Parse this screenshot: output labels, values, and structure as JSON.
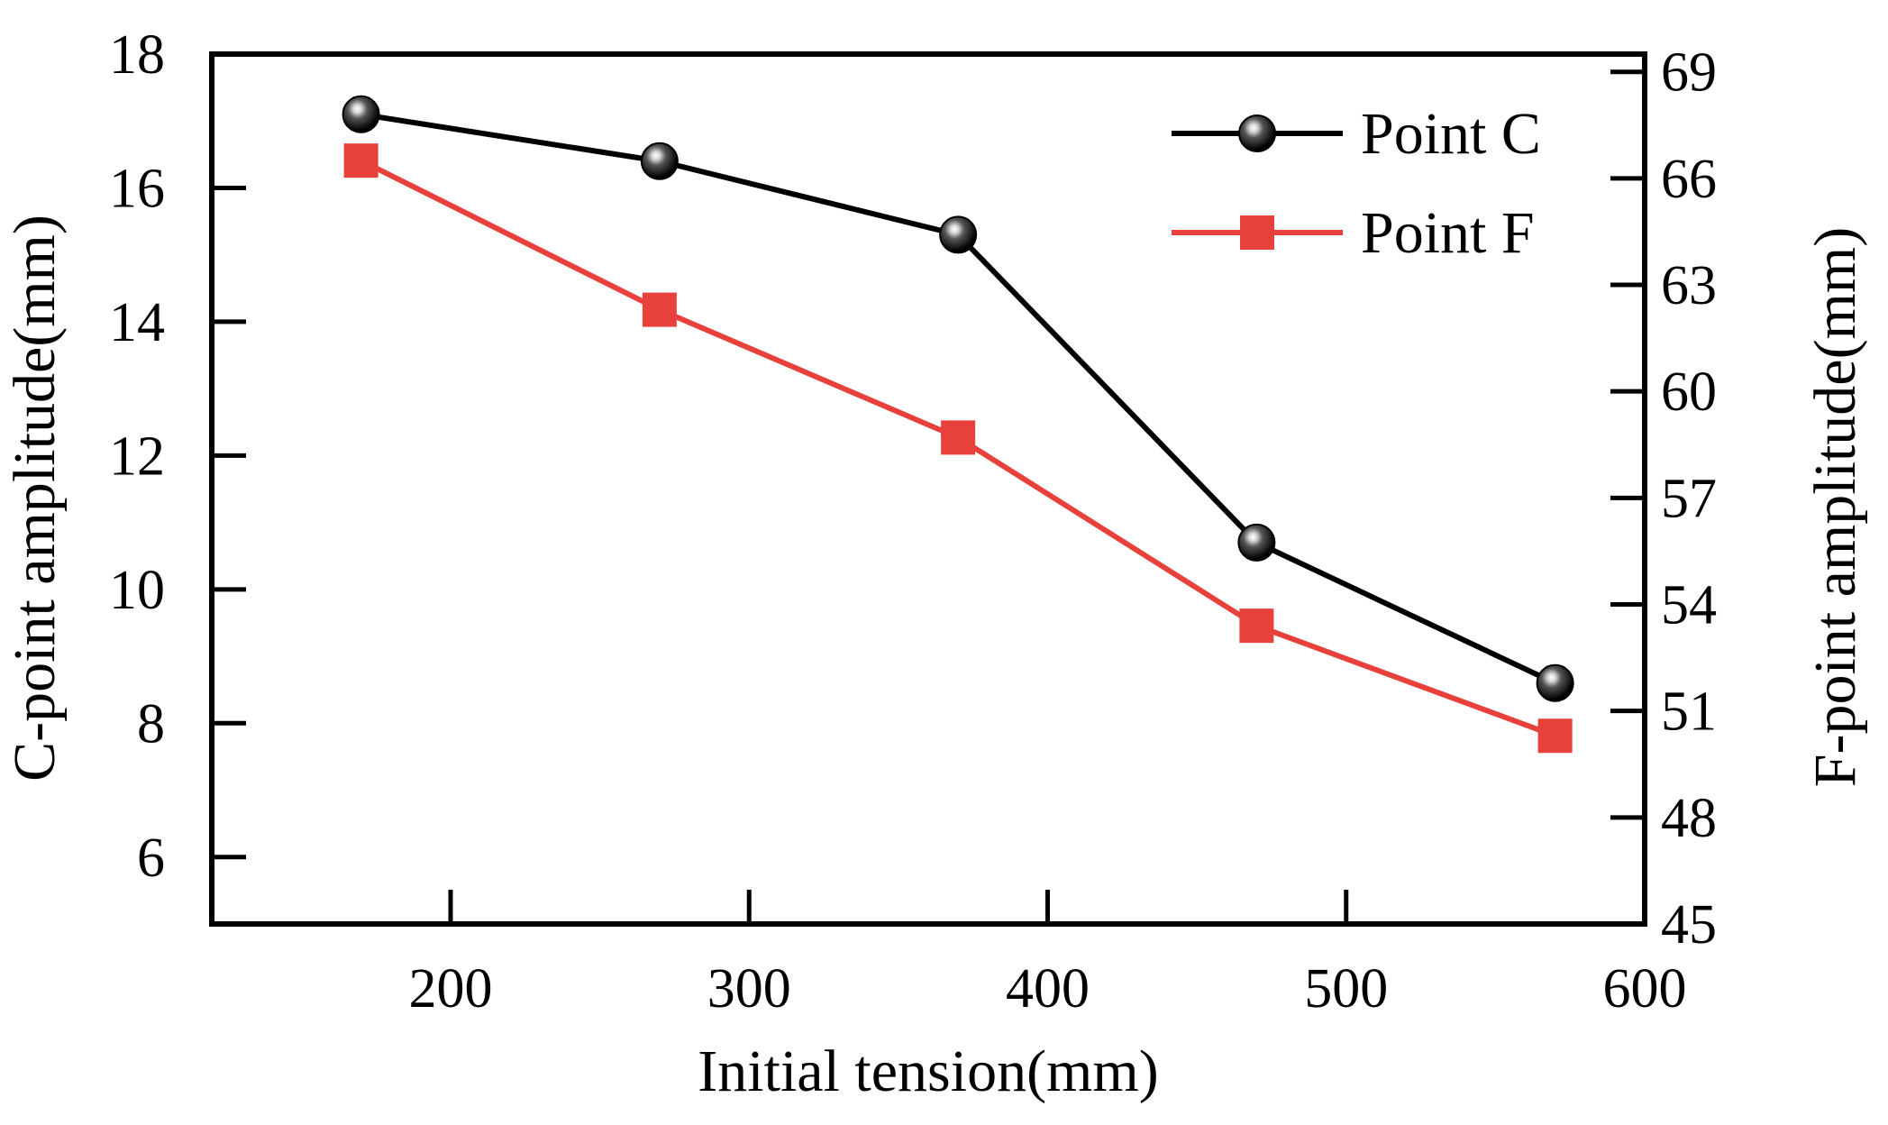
{
  "chart_data": {
    "type": "line",
    "title": "",
    "xlabel": "Initial tension(mm)",
    "ylabel": "C-point amplitude(mm)",
    "y2label": "F-point amplitude(mm)",
    "xlim": [
      120,
      600
    ],
    "ylim": [
      5,
      18
    ],
    "y2lim": [
      45,
      69.5
    ],
    "xticks": [
      200,
      300,
      400,
      500,
      600
    ],
    "yticks": [
      6,
      8,
      10,
      12,
      14,
      16,
      18
    ],
    "y2ticks": [
      45,
      48,
      51,
      54,
      57,
      60,
      63,
      66,
      69
    ],
    "legend_position": "top-right",
    "series": [
      {
        "name": "Point C",
        "axis": "left",
        "color": "#000000",
        "marker": "sphere",
        "x": [
          170,
          270,
          370,
          470,
          570
        ],
        "values": [
          17.1,
          16.4,
          15.3,
          10.7,
          8.6
        ]
      },
      {
        "name": "Point F",
        "axis": "right",
        "color": "#e8413c",
        "marker": "square",
        "x": [
          170,
          270,
          370,
          470,
          570
        ],
        "values": [
          66.5,
          62.3,
          58.7,
          53.4,
          50.3
        ]
      }
    ]
  }
}
